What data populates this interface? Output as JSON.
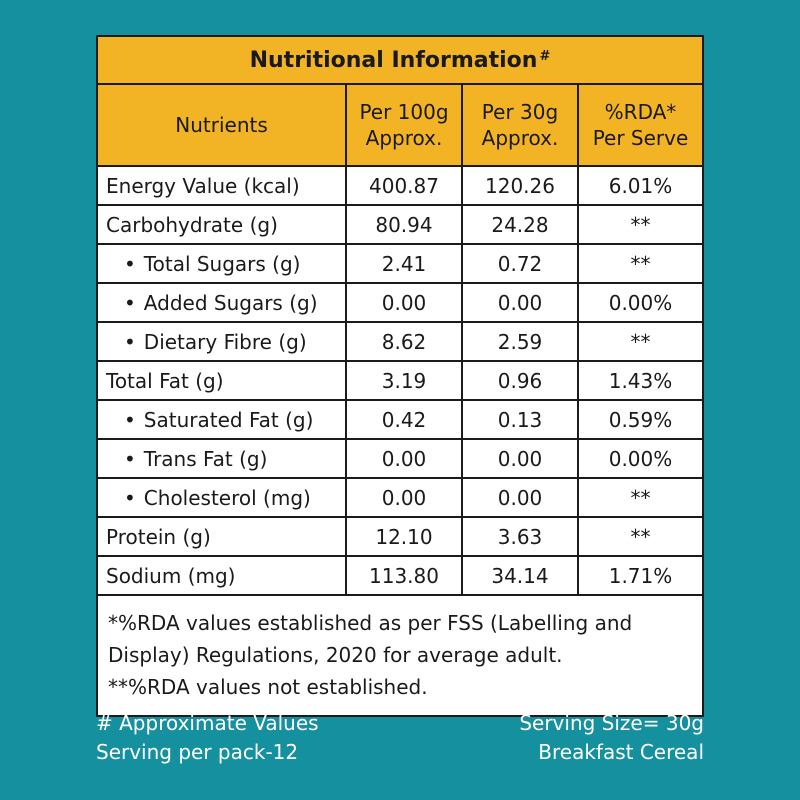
{
  "title": "Nutritional Information",
  "title_mark": "#",
  "headers": {
    "nutrients": "Nutrients",
    "per100_line1": "Per 100g",
    "per100_line2": "Approx.",
    "per30_line1": "Per 30g",
    "per30_line2": "Approx.",
    "rda_line1": "%RDA*",
    "rda_line2": "Per Serve"
  },
  "rows": [
    {
      "name": "Energy Value (kcal)",
      "per100": "400.87",
      "per30": "120.26",
      "rda": "6.01%"
    },
    {
      "name": "Carbohydrate (g)",
      "per100": "80.94",
      "per30": "24.28",
      "rda": "**"
    },
    {
      "name": "Total Sugars (g)",
      "per100": "2.41",
      "per30": "0.72",
      "rda": "**"
    },
    {
      "name": "Added Sugars (g)",
      "per100": "0.00",
      "per30": "0.00",
      "rda": "0.00%"
    },
    {
      "name": "Dietary Fibre (g)",
      "per100": "8.62",
      "per30": "2.59",
      "rda": "**"
    },
    {
      "name": "Total Fat (g)",
      "per100": "3.19",
      "per30": "0.96",
      "rda": "1.43%"
    },
    {
      "name": "Saturated Fat (g)",
      "per100": "0.42",
      "per30": "0.13",
      "rda": "0.59%"
    },
    {
      "name": "Trans Fat (g)",
      "per100": "0.00",
      "per30": "0.00",
      "rda": "0.00%"
    },
    {
      "name": "Cholesterol (mg)",
      "per100": "0.00",
      "per30": "0.00",
      "rda": "**"
    },
    {
      "name": "Protein (g)",
      "per100": "12.10",
      "per30": "3.63",
      "rda": "**"
    },
    {
      "name": "Sodium (mg)",
      "per100": "113.80",
      "per30": "34.14",
      "rda": "1.71%"
    }
  ],
  "bullet": "•",
  "notes": {
    "line1": "*%RDA values established as per FSS (Labelling and",
    "line2": "Display) Regulations, 2020 for average adult.",
    "line3": "**%RDA values not established."
  },
  "footer": {
    "approx": "# Approximate Values",
    "serving_per_pack": "Serving per pack-12",
    "serving_size": "Serving Size= 30g",
    "product": "Breakfast Cereal"
  },
  "colors": {
    "background": "#15909f",
    "header": "#f2b325",
    "table": "#ffffff",
    "border": "#1b1b1b"
  }
}
